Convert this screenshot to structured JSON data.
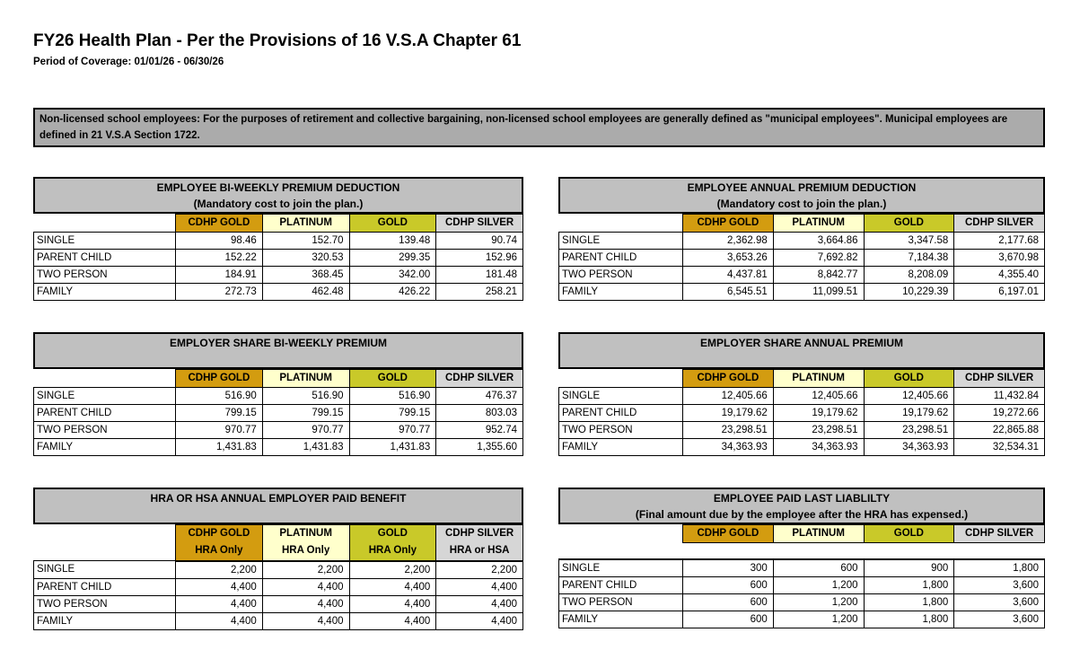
{
  "page": {
    "title": "FY26 Health Plan - Per the Provisions of 16 V.S.A Chapter 61",
    "subtitle": "Period of Coverage: 01/01/26 - 06/30/26"
  },
  "banner": {
    "text": "Non-licensed school employees:  For the purposes of retirement and collective bargaining, non-licensed school employees are generally defined as \"municipal employees\".  Municipal employees are defined in 21 V.S.A Section 1722."
  },
  "colors": {
    "banner_bg": "#ABABAB",
    "table_title_bg": "#C0C0C0",
    "plan_headers": [
      "#D39C10",
      "#FFFFCC",
      "#C9C929",
      "#D6D6D6"
    ]
  },
  "plan_columns": [
    "CDHP GOLD",
    "PLATINUM",
    "GOLD",
    "CDHP SILVER"
  ],
  "row_labels": [
    "SINGLE",
    "PARENT CHILD",
    "TWO PERSON",
    "FAMILY"
  ],
  "tables": [
    {
      "id": "employee-biweekly-premium-deduction",
      "title": "EMPLOYEE BI-WEEKLY PREMIUM DEDUCTION",
      "subtitle": "(Mandatory cost to join the plan.)",
      "columns": [
        "CDHP GOLD",
        "PLATINUM",
        "GOLD",
        "CDHP SILVER"
      ],
      "column_sublabels": null,
      "rows": [
        {
          "label": "SINGLE",
          "values": [
            "98.46",
            "152.70",
            "139.48",
            "90.74"
          ]
        },
        {
          "label": "PARENT CHILD",
          "values": [
            "152.22",
            "320.53",
            "299.35",
            "152.96"
          ]
        },
        {
          "label": "TWO PERSON",
          "values": [
            "184.91",
            "368.45",
            "342.00",
            "181.48"
          ]
        },
        {
          "label": "FAMILY",
          "values": [
            "272.73",
            "462.48",
            "426.22",
            "258.21"
          ]
        }
      ]
    },
    {
      "id": "employee-annual-premium-deduction",
      "title": "EMPLOYEE ANNUAL PREMIUM DEDUCTION",
      "subtitle": "(Mandatory cost to join the plan.)",
      "columns": [
        "CDHP GOLD",
        "PLATINUM",
        "GOLD",
        "CDHP SILVER"
      ],
      "column_sublabels": null,
      "rows": [
        {
          "label": "SINGLE",
          "values": [
            "2,362.98",
            "3,664.86",
            "3,347.58",
            "2,177.68"
          ]
        },
        {
          "label": "PARENT CHILD",
          "values": [
            "3,653.26",
            "7,692.82",
            "7,184.38",
            "3,670.98"
          ]
        },
        {
          "label": "TWO PERSON",
          "values": [
            "4,437.81",
            "8,842.77",
            "8,208.09",
            "4,355.40"
          ]
        },
        {
          "label": "FAMILY",
          "values": [
            "6,545.51",
            "11,099.51",
            "10,229.39",
            "6,197.01"
          ]
        }
      ]
    },
    {
      "id": "employer-share-biweekly-premium",
      "title": "EMPLOYER SHARE BI-WEEKLY PREMIUM",
      "subtitle": "",
      "columns": [
        "CDHP GOLD",
        "PLATINUM",
        "GOLD",
        "CDHP SILVER"
      ],
      "column_sublabels": null,
      "rows": [
        {
          "label": "SINGLE",
          "values": [
            "516.90",
            "516.90",
            "516.90",
            "476.37"
          ]
        },
        {
          "label": "PARENT CHILD",
          "values": [
            "799.15",
            "799.15",
            "799.15",
            "803.03"
          ]
        },
        {
          "label": "TWO PERSON",
          "values": [
            "970.77",
            "970.77",
            "970.77",
            "952.74"
          ]
        },
        {
          "label": "FAMILY",
          "values": [
            "1,431.83",
            "1,431.83",
            "1,431.83",
            "1,355.60"
          ]
        }
      ]
    },
    {
      "id": "employer-share-annual-premium",
      "title": "EMPLOYER SHARE ANNUAL PREMIUM",
      "subtitle": "",
      "columns": [
        "CDHP GOLD",
        "PLATINUM",
        "GOLD",
        "CDHP SILVER"
      ],
      "column_sublabels": null,
      "rows": [
        {
          "label": "SINGLE",
          "values": [
            "12,405.66",
            "12,405.66",
            "12,405.66",
            "11,432.84"
          ]
        },
        {
          "label": "PARENT CHILD",
          "values": [
            "19,179.62",
            "19,179.62",
            "19,179.62",
            "19,272.66"
          ]
        },
        {
          "label": "TWO PERSON",
          "values": [
            "23,298.51",
            "23,298.51",
            "23,298.51",
            "22,865.88"
          ]
        },
        {
          "label": "FAMILY",
          "values": [
            "34,363.93",
            "34,363.93",
            "34,363.93",
            "32,534.31"
          ]
        }
      ]
    },
    {
      "id": "hra-hsa-annual-employer-paid-benefit",
      "title": "HRA OR HSA ANNUAL EMPLOYER PAID BENEFIT",
      "subtitle": "",
      "columns": [
        "CDHP GOLD",
        "PLATINUM",
        "GOLD",
        "CDHP SILVER"
      ],
      "column_sublabels": [
        "HRA Only",
        "HRA Only",
        "HRA Only",
        "HRA or HSA"
      ],
      "rows": [
        {
          "label": "SINGLE",
          "values": [
            "2,200",
            "2,200",
            "2,200",
            "2,200"
          ]
        },
        {
          "label": "PARENT CHILD",
          "values": [
            "4,400",
            "4,400",
            "4,400",
            "4,400"
          ]
        },
        {
          "label": "TWO PERSON",
          "values": [
            "4,400",
            "4,400",
            "4,400",
            "4,400"
          ]
        },
        {
          "label": "FAMILY",
          "values": [
            "4,400",
            "4,400",
            "4,400",
            "4,400"
          ]
        }
      ]
    },
    {
      "id": "employee-paid-last-liability",
      "title": "EMPLOYEE PAID LAST LIABLILTY",
      "subtitle": "(Final amount due by the employee after the HRA has expensed.)",
      "columns": [
        "CDHP GOLD",
        "PLATINUM",
        "GOLD",
        "CDHP SILVER"
      ],
      "column_sublabels": null,
      "header_gap": true,
      "rows": [
        {
          "label": "SINGLE",
          "values": [
            "300",
            "600",
            "900",
            "1,800"
          ]
        },
        {
          "label": "PARENT CHILD",
          "values": [
            "600",
            "1,200",
            "1,800",
            "3,600"
          ]
        },
        {
          "label": "TWO PERSON",
          "values": [
            "600",
            "1,200",
            "1,800",
            "3,600"
          ]
        },
        {
          "label": "FAMILY",
          "values": [
            "600",
            "1,200",
            "1,800",
            "3,600"
          ]
        }
      ]
    }
  ]
}
